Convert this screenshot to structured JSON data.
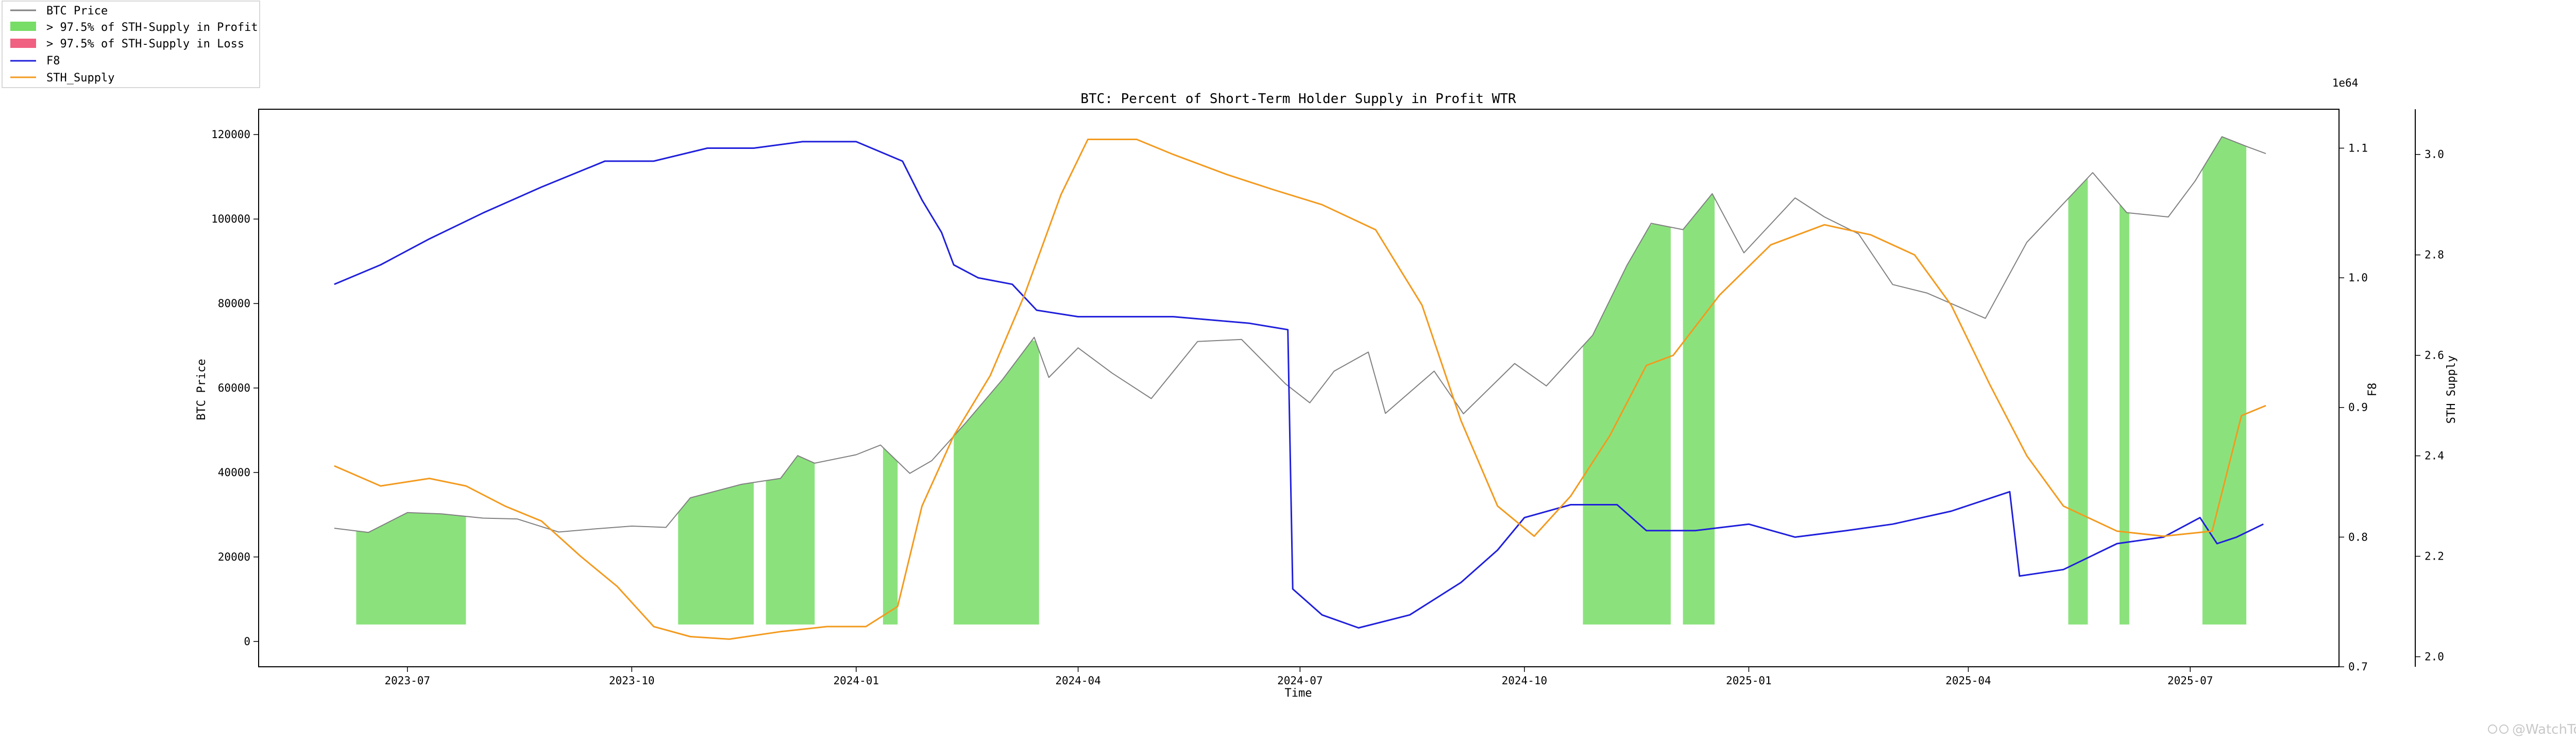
{
  "chart_data": {
    "type": "line",
    "title": "BTC: Percent of Short-Term Holder Supply in Profit WTR",
    "xlabel": "Time",
    "ylabel_left": "BTC Price",
    "ylabel_right1": "F8",
    "ylabel_right2": "STH Supply",
    "right2_offset_label": "1e64",
    "x_range": [
      "2023-05-01",
      "2025-08-31"
    ],
    "x_ticks": [
      "2023-07",
      "2023-10",
      "2024-01",
      "2024-04",
      "2024-07",
      "2024-10",
      "2025-01",
      "2025-04",
      "2025-07"
    ],
    "y_left": {
      "range": [
        -6000,
        126000
      ],
      "ticks": [
        "0",
        "20000",
        "40000",
        "60000",
        "80000",
        "100000",
        "120000"
      ]
    },
    "y_right1": {
      "range": [
        0.7,
        1.13
      ],
      "ticks": [
        "0.7",
        "0.8",
        "0.9",
        "1.0",
        "1.1"
      ]
    },
    "y_right2": {
      "range": [
        1.98,
        3.09
      ],
      "ticks": [
        "2.0",
        "2.2",
        "2.4",
        "2.6",
        "2.8",
        "3.0"
      ]
    },
    "legend": {
      "placement": "top-left",
      "entries": [
        {
          "label": "BTC Price",
          "kind": "line",
          "color": "#808080"
        },
        {
          "label": "> 97.5% of STH-Supply in Profit",
          "kind": "patch",
          "color": "#77dd66"
        },
        {
          "label": "> 97.5% of STH-Supply in Loss",
          "kind": "patch",
          "color": "#f06080"
        },
        {
          "label": "F8",
          "kind": "line",
          "color": "#1f1fdb"
        },
        {
          "label": "STH_Supply",
          "kind": "line",
          "color": "#f39a1e"
        }
      ]
    },
    "series": [
      {
        "name": "BTC Price",
        "axis": "left",
        "color": "#808080",
        "points": [
          [
            "2023-06-01",
            26800
          ],
          [
            "2023-06-15",
            25800
          ],
          [
            "2023-07-01",
            30500
          ],
          [
            "2023-07-15",
            30200
          ],
          [
            "2023-08-01",
            29200
          ],
          [
            "2023-08-15",
            29000
          ],
          [
            "2023-09-01",
            25900
          ],
          [
            "2023-09-15",
            26600
          ],
          [
            "2023-10-01",
            27300
          ],
          [
            "2023-10-15",
            27000
          ],
          [
            "2023-10-25",
            34000
          ],
          [
            "2023-11-15",
            37200
          ],
          [
            "2023-12-01",
            38600
          ],
          [
            "2023-12-08",
            44000
          ],
          [
            "2023-12-15",
            42200
          ],
          [
            "2024-01-01",
            44200
          ],
          [
            "2024-01-11",
            46500
          ],
          [
            "2024-01-23",
            39800
          ],
          [
            "2024-02-01",
            42800
          ],
          [
            "2024-02-15",
            51800
          ],
          [
            "2024-03-01",
            62000
          ],
          [
            "2024-03-14",
            72000
          ],
          [
            "2024-03-20",
            62500
          ],
          [
            "2024-04-01",
            69500
          ],
          [
            "2024-04-15",
            63500
          ],
          [
            "2024-05-01",
            57500
          ],
          [
            "2024-05-20",
            71000
          ],
          [
            "2024-06-07",
            71500
          ],
          [
            "2024-06-25",
            61000
          ],
          [
            "2024-07-05",
            56500
          ],
          [
            "2024-07-15",
            64000
          ],
          [
            "2024-07-29",
            68500
          ],
          [
            "2024-08-05",
            54000
          ],
          [
            "2024-08-25",
            64000
          ],
          [
            "2024-09-06",
            53900
          ],
          [
            "2024-09-27",
            65800
          ],
          [
            "2024-10-10",
            60500
          ],
          [
            "2024-10-29",
            72500
          ],
          [
            "2024-11-12",
            89000
          ],
          [
            "2024-11-22",
            99000
          ],
          [
            "2024-12-05",
            97500
          ],
          [
            "2024-12-17",
            106000
          ],
          [
            "2024-12-30",
            92000
          ],
          [
            "2025-01-20",
            105000
          ],
          [
            "2025-02-01",
            100500
          ],
          [
            "2025-02-15",
            96500
          ],
          [
            "2025-03-01",
            84500
          ],
          [
            "2025-03-15",
            82500
          ],
          [
            "2025-04-08",
            76500
          ],
          [
            "2025-04-25",
            94500
          ],
          [
            "2025-05-22",
            111000
          ],
          [
            "2025-06-05",
            101500
          ],
          [
            "2025-06-22",
            100500
          ],
          [
            "2025-07-03",
            109000
          ],
          [
            "2025-07-14",
            119500
          ],
          [
            "2025-07-25",
            117000
          ],
          [
            "2025-08-01",
            115500
          ]
        ]
      },
      {
        "name": "F8",
        "axis": "right1",
        "color": "#1f1fdb",
        "points": [
          [
            "2023-06-01",
            0.995
          ],
          [
            "2023-06-20",
            1.01
          ],
          [
            "2023-07-10",
            1.03
          ],
          [
            "2023-08-01",
            1.05
          ],
          [
            "2023-08-25",
            1.07
          ],
          [
            "2023-09-20",
            1.09
          ],
          [
            "2023-10-10",
            1.09
          ],
          [
            "2023-11-01",
            1.1
          ],
          [
            "2023-11-20",
            1.1
          ],
          [
            "2023-12-10",
            1.105
          ],
          [
            "2024-01-01",
            1.105
          ],
          [
            "2024-01-20",
            1.09
          ],
          [
            "2024-01-28",
            1.06
          ],
          [
            "2024-02-05",
            1.035
          ],
          [
            "2024-02-10",
            1.01
          ],
          [
            "2024-02-20",
            1.0
          ],
          [
            "2024-03-05",
            0.995
          ],
          [
            "2024-03-15",
            0.975
          ],
          [
            "2024-04-01",
            0.97
          ],
          [
            "2024-04-20",
            0.97
          ],
          [
            "2024-05-10",
            0.97
          ],
          [
            "2024-06-10",
            0.965
          ],
          [
            "2024-06-26",
            0.96
          ],
          [
            "2024-06-28",
            0.76
          ],
          [
            "2024-07-10",
            0.74
          ],
          [
            "2024-07-25",
            0.73
          ],
          [
            "2024-08-15",
            0.74
          ],
          [
            "2024-09-05",
            0.765
          ],
          [
            "2024-09-20",
            0.79
          ],
          [
            "2024-10-01",
            0.815
          ],
          [
            "2024-10-20",
            0.825
          ],
          [
            "2024-11-08",
            0.825
          ],
          [
            "2024-11-20",
            0.805
          ],
          [
            "2024-12-10",
            0.805
          ],
          [
            "2025-01-01",
            0.81
          ],
          [
            "2025-01-20",
            0.8
          ],
          [
            "2025-02-10",
            0.805
          ],
          [
            "2025-03-01",
            0.81
          ],
          [
            "2025-03-25",
            0.82
          ],
          [
            "2025-04-18",
            0.835
          ],
          [
            "2025-04-22",
            0.77
          ],
          [
            "2025-05-10",
            0.775
          ],
          [
            "2025-06-01",
            0.795
          ],
          [
            "2025-06-20",
            0.8
          ],
          [
            "2025-07-05",
            0.815
          ],
          [
            "2025-07-12",
            0.795
          ],
          [
            "2025-07-20",
            0.8
          ],
          [
            "2025-07-31",
            0.81
          ]
        ]
      },
      {
        "name": "STH_Supply",
        "axis": "right2",
        "color": "#f39a1e",
        "points": [
          [
            "2023-06-01",
            2.38
          ],
          [
            "2023-06-20",
            2.34
          ],
          [
            "2023-07-10",
            2.355
          ],
          [
            "2023-07-25",
            2.34
          ],
          [
            "2023-08-10",
            2.3
          ],
          [
            "2023-08-25",
            2.27
          ],
          [
            "2023-09-10",
            2.2
          ],
          [
            "2023-09-25",
            2.14
          ],
          [
            "2023-10-10",
            2.06
          ],
          [
            "2023-10-25",
            2.04
          ],
          [
            "2023-11-10",
            2.035
          ],
          [
            "2023-12-01",
            2.05
          ],
          [
            "2023-12-20",
            2.06
          ],
          [
            "2024-01-05",
            2.06
          ],
          [
            "2024-01-18",
            2.1
          ],
          [
            "2024-01-28",
            2.3
          ],
          [
            "2024-02-10",
            2.44
          ],
          [
            "2024-02-25",
            2.56
          ],
          [
            "2024-03-10",
            2.72
          ],
          [
            "2024-03-25",
            2.92
          ],
          [
            "2024-04-05",
            3.03
          ],
          [
            "2024-04-25",
            3.03
          ],
          [
            "2024-05-10",
            3.0
          ],
          [
            "2024-06-01",
            2.96
          ],
          [
            "2024-06-20",
            2.93
          ],
          [
            "2024-07-10",
            2.9
          ],
          [
            "2024-08-01",
            2.85
          ],
          [
            "2024-08-20",
            2.7
          ],
          [
            "2024-09-05",
            2.47
          ],
          [
            "2024-09-20",
            2.3
          ],
          [
            "2024-10-05",
            2.24
          ],
          [
            "2024-10-20",
            2.32
          ],
          [
            "2024-11-05",
            2.44
          ],
          [
            "2024-11-20",
            2.58
          ],
          [
            "2024-12-01",
            2.6
          ],
          [
            "2024-12-20",
            2.72
          ],
          [
            "2025-01-10",
            2.82
          ],
          [
            "2025-02-01",
            2.86
          ],
          [
            "2025-02-20",
            2.84
          ],
          [
            "2025-03-10",
            2.8
          ],
          [
            "2025-03-25",
            2.7
          ],
          [
            "2025-04-10",
            2.54
          ],
          [
            "2025-04-25",
            2.4
          ],
          [
            "2025-05-10",
            2.3
          ],
          [
            "2025-06-01",
            2.25
          ],
          [
            "2025-06-20",
            2.24
          ],
          [
            "2025-07-10",
            2.25
          ],
          [
            "2025-07-22",
            2.48
          ],
          [
            "2025-08-01",
            2.5
          ]
        ]
      }
    ],
    "profit_regions": [
      [
        "2023-06-10",
        "2023-07-25"
      ],
      [
        "2023-10-20",
        "2023-11-20"
      ],
      [
        "2023-11-25",
        "2023-12-15"
      ],
      [
        "2024-01-12",
        "2024-01-18"
      ],
      [
        "2024-02-10",
        "2024-03-16"
      ],
      [
        "2024-10-25",
        "2024-11-30"
      ],
      [
        "2024-12-05",
        "2024-12-18"
      ],
      [
        "2025-05-12",
        "2025-05-20"
      ],
      [
        "2025-06-02",
        "2025-06-06"
      ],
      [
        "2025-07-06",
        "2025-07-24"
      ]
    ],
    "loss_regions": []
  },
  "watermark": "@WatchTower"
}
